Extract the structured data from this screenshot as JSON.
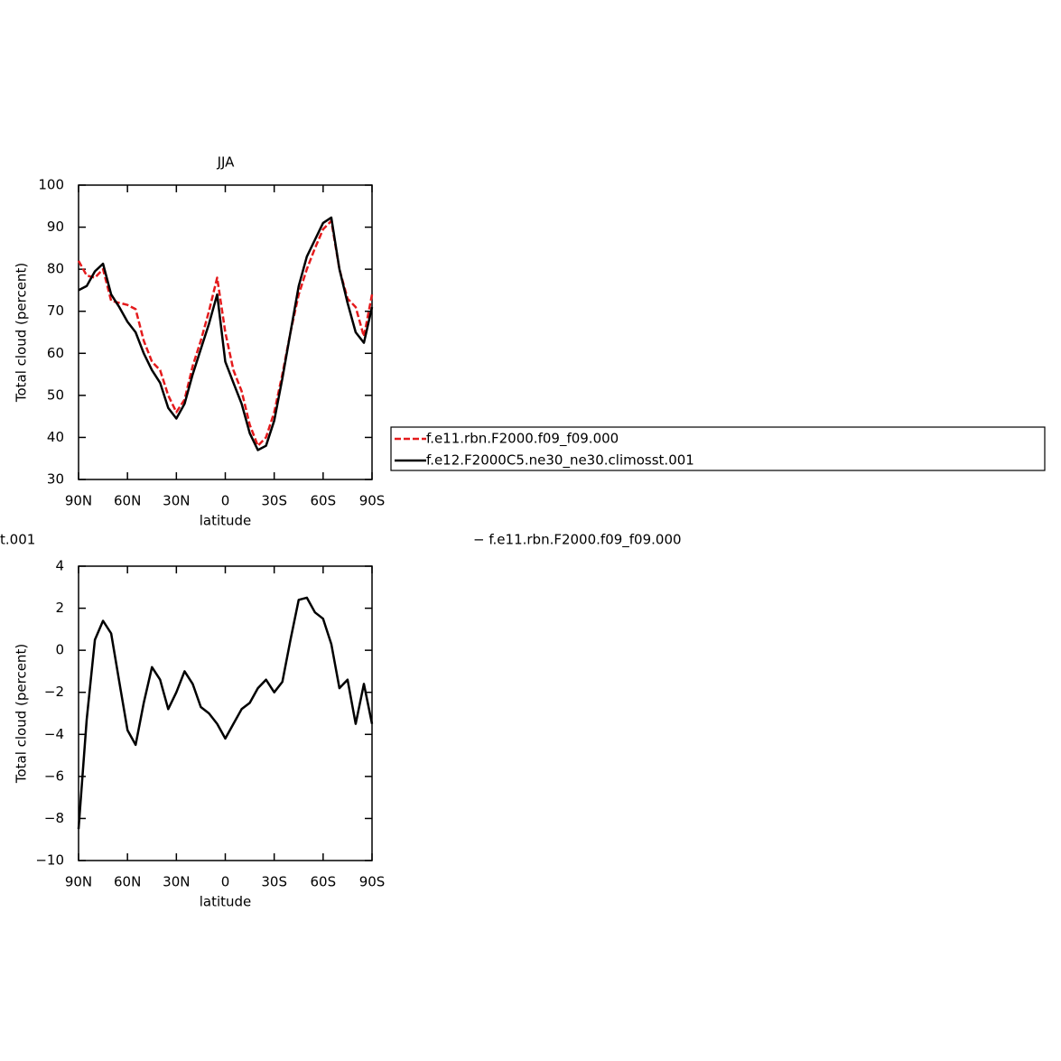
{
  "chart_data": [
    {
      "type": "line",
      "title": "JJA",
      "xlabel": "latitude",
      "ylabel": "Total cloud (percent)",
      "x": [
        90,
        85,
        80,
        75,
        70,
        65,
        60,
        55,
        50,
        45,
        40,
        35,
        30,
        25,
        20,
        15,
        10,
        5,
        0,
        -5,
        -10,
        -15,
        -20,
        -25,
        -30,
        -35,
        -40,
        -45,
        -50,
        -55,
        -60,
        -65,
        -70,
        -75,
        -80,
        -85,
        -90
      ],
      "xlim": [
        90,
        -90
      ],
      "xticks": [
        {
          "value": 90,
          "label": "90N"
        },
        {
          "value": 60,
          "label": "60N"
        },
        {
          "value": 30,
          "label": "30N"
        },
        0,
        {
          "value": -30,
          "label": "30S"
        },
        {
          "value": -60,
          "label": "60S"
        },
        {
          "value": -90,
          "label": "90S"
        }
      ],
      "ylim": [
        30,
        100
      ],
      "yticks": [
        30,
        40,
        50,
        60,
        70,
        80,
        90,
        100
      ],
      "series": [
        {
          "name": "f.e11.rbn.F2000.f09_f09.000",
          "color": "#e41a1c",
          "line_style": "dashed",
          "values": [
            82,
            78.5,
            78,
            80,
            72.5,
            72,
            71.5,
            70.5,
            63,
            58,
            56,
            50,
            46,
            49,
            57,
            63,
            70,
            78,
            65,
            56,
            51,
            43,
            38,
            40,
            46,
            55,
            65,
            74,
            80,
            85,
            89.5,
            91.5,
            80,
            73,
            71,
            64,
            74
          ]
        },
        {
          "name": "f.e12.F2000C5.ne30_ne30.climosst.001",
          "color": "#000000",
          "line_style": "solid",
          "values": [
            75,
            76,
            79.5,
            81.3,
            74,
            71,
            67.5,
            65,
            60,
            56,
            53,
            47,
            44.5,
            48,
            55,
            61,
            67,
            74,
            58,
            53,
            48,
            41,
            37,
            38,
            44,
            54,
            65,
            76,
            83,
            87,
            91,
            92.3,
            80,
            72,
            65,
            62.5,
            71
          ]
        }
      ]
    },
    {
      "type": "line",
      "xlabel": "latitude",
      "ylabel": "Total cloud (percent)",
      "annotations": [
        "t.001",
        "− f.e11.rbn.F2000.f09_f09.000"
      ],
      "x": [
        90,
        85,
        80,
        75,
        70,
        65,
        60,
        55,
        50,
        45,
        40,
        35,
        30,
        25,
        20,
        15,
        10,
        5,
        0,
        -5,
        -10,
        -15,
        -20,
        -25,
        -30,
        -35,
        -40,
        -45,
        -50,
        -55,
        -60,
        -65,
        -70,
        -75,
        -80,
        -85,
        -90
      ],
      "xlim": [
        90,
        -90
      ],
      "xticks": [
        {
          "value": 90,
          "label": "90N"
        },
        {
          "value": 60,
          "label": "60N"
        },
        {
          "value": 30,
          "label": "30N"
        },
        0,
        {
          "value": -30,
          "label": "30S"
        },
        {
          "value": -60,
          "label": "60S"
        },
        {
          "value": -90,
          "label": "90S"
        }
      ],
      "ylim": [
        -10,
        4
      ],
      "yticks": [
        {
          "value": -10,
          "label": "−10"
        },
        {
          "value": -8,
          "label": "−8"
        },
        {
          "value": -6,
          "label": "−6"
        },
        {
          "value": -4,
          "label": "−4"
        },
        {
          "value": -2,
          "label": "−2"
        },
        0,
        2,
        4
      ],
      "series": [
        {
          "color": "#000000",
          "line_style": "solid",
          "values": [
            -8.5,
            -3.3,
            0.5,
            1.4,
            0.8,
            -1.5,
            -3.8,
            -4.5,
            -2.5,
            -0.8,
            -1.4,
            -2.8,
            -2.0,
            -1.0,
            -1.6,
            -2.7,
            -3.0,
            -3.5,
            -4.2,
            -3.5,
            -2.8,
            -2.5,
            -1.8,
            -1.4,
            -2.0,
            -1.5,
            0.5,
            2.4,
            2.5,
            1.8,
            1.5,
            0.3,
            -1.8,
            -1.4,
            -3.5,
            -1.6,
            -3.5
          ]
        }
      ]
    }
  ]
}
